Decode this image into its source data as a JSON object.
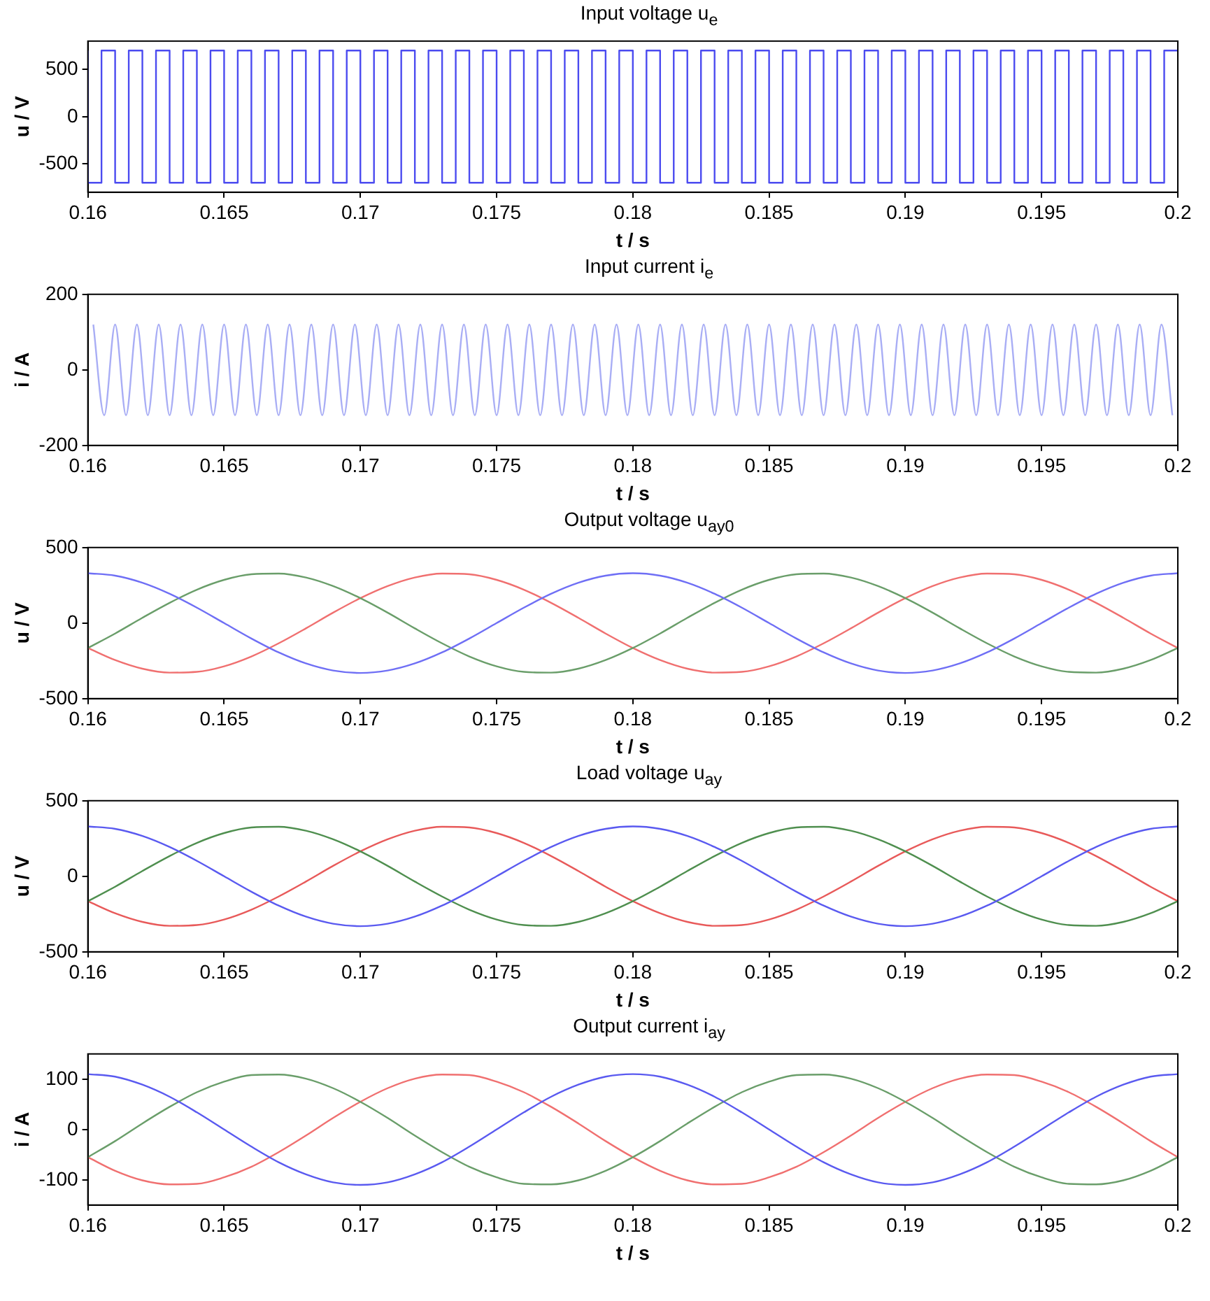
{
  "chart_data": [
    {
      "type": "step",
      "title": "Input voltage u$_{e}$",
      "xlabel": "t / s",
      "ylabel": "u / V",
      "marker": "none",
      "xlim": [
        0.16,
        0.2
      ],
      "xticks": [
        0.16,
        0.165,
        0.17,
        0.175,
        0.18,
        0.185,
        0.19,
        0.195,
        0.2
      ],
      "ylim": [
        -800,
        800
      ],
      "yticks": [
        -500,
        0,
        500
      ],
      "x": [
        0.16,
        0.1605,
        0.161,
        0.1615,
        0.162,
        0.1625,
        0.163,
        0.1635,
        0.164,
        0.1645,
        0.165,
        0.1655,
        0.166,
        0.1665,
        0.167,
        0.1675,
        0.168,
        0.1685,
        0.169,
        0.1695,
        0.17,
        0.1705,
        0.171,
        0.1715,
        0.172,
        0.1725,
        0.173,
        0.1735,
        0.174,
        0.1745,
        0.175,
        0.1755,
        0.176,
        0.1765,
        0.177,
        0.1775,
        0.178,
        0.1785,
        0.179,
        0.1795,
        0.18,
        0.1805,
        0.181,
        0.1815,
        0.182,
        0.1825,
        0.183,
        0.1835,
        0.184,
        0.1845,
        0.185,
        0.1855,
        0.186,
        0.1865,
        0.187,
        0.1875,
        0.188,
        0.1885,
        0.189,
        0.1895,
        0.19,
        0.1905,
        0.191,
        0.1915,
        0.192,
        0.1925,
        0.193,
        0.1935,
        0.194,
        0.1945,
        0.195,
        0.1955,
        0.196,
        0.1965,
        0.197,
        0.1975,
        0.198,
        0.1985,
        0.199,
        0.1995,
        0.2
      ],
      "series": [
        {
          "color": "#4b4bf0",
          "values": [
            700,
            -700,
            700,
            -700,
            700,
            -700,
            700,
            -700,
            700,
            -700,
            700,
            -700,
            700,
            -700,
            700,
            -700,
            700,
            -700,
            700,
            -700,
            700,
            -700,
            700,
            -700,
            700,
            -700,
            700,
            -700,
            700,
            -700,
            700,
            -700,
            700,
            -700,
            700,
            -700,
            700,
            -700,
            700,
            -700,
            700,
            -700,
            700,
            -700,
            700,
            -700,
            700,
            -700,
            700,
            -700,
            700,
            -700,
            700,
            -700,
            700,
            -700,
            700,
            -700,
            700,
            -700,
            700,
            -700,
            700,
            -700,
            700,
            -700,
            700,
            -700,
            700,
            -700,
            700,
            -700,
            700,
            -700,
            700,
            -700,
            700,
            -700,
            700,
            -700,
            700
          ]
        }
      ]
    },
    {
      "type": "line",
      "title": "Input current i$_{e}$",
      "xlabel": "t / s",
      "ylabel": "i / A",
      "marker": "none",
      "xlim": [
        0.16,
        0.2
      ],
      "xticks": [
        0.16,
        0.165,
        0.17,
        0.175,
        0.18,
        0.185,
        0.19,
        0.195,
        0.2
      ],
      "ylim": [
        -200,
        200
      ],
      "yticks": [
        -200,
        0,
        200
      ],
      "x": [
        0.1602,
        0.1606,
        0.161,
        0.1614,
        0.1618,
        0.1622,
        0.1626,
        0.163,
        0.1634,
        0.1638,
        0.1642,
        0.1646,
        0.165,
        0.1654,
        0.1658,
        0.1662,
        0.1666,
        0.167,
        0.1674,
        0.1678,
        0.1682,
        0.1686,
        0.169,
        0.1694,
        0.1698,
        0.1702,
        0.1706,
        0.171,
        0.1714,
        0.1718,
        0.1722,
        0.1726,
        0.173,
        0.1734,
        0.1738,
        0.1742,
        0.1746,
        0.175,
        0.1754,
        0.1758,
        0.1762,
        0.1766,
        0.177,
        0.1774,
        0.1778,
        0.1782,
        0.1786,
        0.179,
        0.1794,
        0.1798,
        0.1802,
        0.1806,
        0.181,
        0.1814,
        0.1818,
        0.1822,
        0.1826,
        0.183,
        0.1834,
        0.1838,
        0.1842,
        0.1846,
        0.185,
        0.1854,
        0.1858,
        0.1862,
        0.1866,
        0.187,
        0.1874,
        0.1878,
        0.1882,
        0.1886,
        0.189,
        0.1894,
        0.1898,
        0.1902,
        0.1906,
        0.191,
        0.1914,
        0.1918,
        0.1922,
        0.1926,
        0.193,
        0.1934,
        0.1938,
        0.1942,
        0.1946,
        0.195,
        0.1954,
        0.1958,
        0.1962,
        0.1966,
        0.197,
        0.1974,
        0.1978,
        0.1982,
        0.1986,
        0.199,
        0.1994,
        0.1998
      ],
      "series": [
        {
          "color": "#a9aef5",
          "values": [
            120,
            -120,
            120,
            -120,
            120,
            -120,
            120,
            -120,
            120,
            -120,
            120,
            -120,
            120,
            -120,
            120,
            -120,
            120,
            -120,
            120,
            -120,
            120,
            -120,
            120,
            -120,
            120,
            -120,
            120,
            -120,
            120,
            -120,
            120,
            -120,
            120,
            -120,
            120,
            -120,
            120,
            -120,
            120,
            -120,
            120,
            -120,
            120,
            -120,
            120,
            -120,
            120,
            -120,
            120,
            -120,
            120,
            -120,
            120,
            -120,
            120,
            -120,
            120,
            -120,
            120,
            -120,
            120,
            -120,
            120,
            -120,
            120,
            -120,
            120,
            -120,
            120,
            -120,
            120,
            -120,
            120,
            -120,
            120,
            -120,
            120,
            -120,
            120,
            -120,
            120,
            -120,
            120,
            -120,
            120,
            -120,
            120,
            -120,
            120,
            -120,
            120,
            -120,
            120,
            -120,
            120,
            -120,
            120,
            -120,
            120,
            -120
          ]
        }
      ]
    },
    {
      "type": "line",
      "title": "Output voltage  u$_{ay0}$",
      "xlabel": "t / s",
      "ylabel": "u / V",
      "marker": "none",
      "xlim": [
        0.16,
        0.2
      ],
      "xticks": [
        0.16,
        0.165,
        0.17,
        0.175,
        0.18,
        0.185,
        0.19,
        0.195,
        0.2
      ],
      "ylim": [
        -500,
        500
      ],
      "yticks": [
        -500,
        0,
        500
      ],
      "x": [
        0.16,
        0.161,
        0.162,
        0.163,
        0.164,
        0.165,
        0.166,
        0.167,
        0.168,
        0.169,
        0.17,
        0.171,
        0.172,
        0.173,
        0.174,
        0.175,
        0.176,
        0.177,
        0.178,
        0.179,
        0.18,
        0.181,
        0.182,
        0.183,
        0.184,
        0.185,
        0.186,
        0.187,
        0.188,
        0.189,
        0.19,
        0.191,
        0.192,
        0.193,
        0.194,
        0.195,
        0.196,
        0.197,
        0.198,
        0.199,
        0.2
      ],
      "series": [
        {
          "color": "#6f6ff5",
          "values": [
            330,
            314,
            267,
            194,
            102,
            0,
            -102,
            -194,
            -267,
            -314,
            -330,
            -314,
            -267,
            -194,
            -102,
            0,
            102,
            194,
            267,
            314,
            330,
            314,
            267,
            194,
            102,
            0,
            -102,
            -194,
            -267,
            -314,
            -330,
            -314,
            -267,
            -194,
            -102,
            0,
            102,
            194,
            267,
            314,
            330
          ]
        },
        {
          "color": "#6a9e6a",
          "values": [
            -165,
            -69,
            35,
            134,
            221,
            286,
            323,
            328,
            302,
            245,
            165,
            69,
            -35,
            -134,
            -221,
            -286,
            -323,
            -328,
            -302,
            -245,
            -165,
            -69,
            35,
            134,
            221,
            286,
            323,
            328,
            302,
            245,
            165,
            69,
            -35,
            -134,
            -221,
            -286,
            -323,
            -328,
            -302,
            -245,
            -165
          ]
        },
        {
          "color": "#f07070",
          "values": [
            -165,
            -245,
            -302,
            -328,
            -323,
            -286,
            -221,
            -134,
            -35,
            69,
            165,
            245,
            302,
            328,
            323,
            286,
            221,
            134,
            35,
            -69,
            -165,
            -245,
            -302,
            -328,
            -323,
            -286,
            -221,
            -134,
            -35,
            69,
            165,
            245,
            302,
            328,
            323,
            286,
            221,
            134,
            35,
            -69,
            -165
          ]
        }
      ]
    },
    {
      "type": "line",
      "title": "Load voltage u$_{ay}$",
      "xlabel": "t / s",
      "ylabel": "u / V",
      "marker": "none",
      "xlim": [
        0.16,
        0.2
      ],
      "xticks": [
        0.16,
        0.165,
        0.17,
        0.175,
        0.18,
        0.185,
        0.19,
        0.195,
        0.2
      ],
      "ylim": [
        -500,
        500
      ],
      "yticks": [
        -500,
        0,
        500
      ],
      "x": [
        0.16,
        0.161,
        0.162,
        0.163,
        0.164,
        0.165,
        0.166,
        0.167,
        0.168,
        0.169,
        0.17,
        0.171,
        0.172,
        0.173,
        0.174,
        0.175,
        0.176,
        0.177,
        0.178,
        0.179,
        0.18,
        0.181,
        0.182,
        0.183,
        0.184,
        0.185,
        0.186,
        0.187,
        0.188,
        0.189,
        0.19,
        0.191,
        0.192,
        0.193,
        0.194,
        0.195,
        0.196,
        0.197,
        0.198,
        0.199,
        0.2
      ],
      "series": [
        {
          "color": "#5a5af0",
          "values": [
            330,
            314,
            267,
            194,
            102,
            0,
            -102,
            -194,
            -267,
            -314,
            -330,
            -314,
            -267,
            -194,
            -102,
            0,
            102,
            194,
            267,
            314,
            330,
            314,
            267,
            194,
            102,
            0,
            -102,
            -194,
            -267,
            -314,
            -330,
            -314,
            -267,
            -194,
            -102,
            0,
            102,
            194,
            267,
            314,
            330
          ]
        },
        {
          "color": "#4f8f4f",
          "values": [
            -165,
            -69,
            35,
            134,
            221,
            286,
            323,
            328,
            302,
            245,
            165,
            69,
            -35,
            -134,
            -221,
            -286,
            -323,
            -328,
            -302,
            -245,
            -165,
            -69,
            35,
            134,
            221,
            286,
            323,
            328,
            302,
            245,
            165,
            69,
            -35,
            -134,
            -221,
            -286,
            -323,
            -328,
            -302,
            -245,
            -165
          ]
        },
        {
          "color": "#e85a5a",
          "values": [
            -165,
            -245,
            -302,
            -328,
            -323,
            -286,
            -221,
            -134,
            -35,
            69,
            165,
            245,
            302,
            328,
            323,
            286,
            221,
            134,
            35,
            -69,
            -165,
            -245,
            -302,
            -328,
            -323,
            -286,
            -221,
            -134,
            -35,
            69,
            165,
            245,
            302,
            328,
            323,
            286,
            221,
            134,
            35,
            -69,
            -165
          ]
        }
      ]
    },
    {
      "type": "line",
      "title": "Output current i$_{ay}$",
      "xlabel": "t / s",
      "ylabel": "i / A",
      "marker": "none",
      "xlim": [
        0.16,
        0.2
      ],
      "xticks": [
        0.16,
        0.165,
        0.17,
        0.175,
        0.18,
        0.185,
        0.19,
        0.195,
        0.2
      ],
      "ylim": [
        -150,
        150
      ],
      "yticks": [
        -100,
        0,
        100
      ],
      "x": [
        0.16,
        0.161,
        0.162,
        0.163,
        0.164,
        0.165,
        0.166,
        0.167,
        0.168,
        0.169,
        0.17,
        0.171,
        0.172,
        0.173,
        0.174,
        0.175,
        0.176,
        0.177,
        0.178,
        0.179,
        0.18,
        0.181,
        0.182,
        0.183,
        0.184,
        0.185,
        0.186,
        0.187,
        0.188,
        0.189,
        0.19,
        0.191,
        0.192,
        0.193,
        0.194,
        0.195,
        0.196,
        0.197,
        0.198,
        0.199,
        0.2
      ],
      "series": [
        {
          "color": "#5a5af0",
          "values": [
            110,
            105,
            89,
            65,
            34,
            0,
            -34,
            -65,
            -89,
            -105,
            -110,
            -105,
            -89,
            -65,
            -34,
            0,
            34,
            65,
            89,
            105,
            110,
            105,
            89,
            65,
            34,
            0,
            -34,
            -65,
            -89,
            -105,
            -110,
            -105,
            -89,
            -65,
            -34,
            0,
            34,
            65,
            89,
            105,
            110
          ]
        },
        {
          "color": "#6a9e6a",
          "values": [
            -55,
            -23,
            12,
            45,
            74,
            95,
            108,
            109,
            101,
            82,
            55,
            23,
            -12,
            -45,
            -74,
            -95,
            -108,
            -109,
            -101,
            -82,
            -55,
            -23,
            12,
            45,
            74,
            95,
            108,
            109,
            101,
            82,
            55,
            23,
            -12,
            -45,
            -74,
            -95,
            -108,
            -109,
            -101,
            -82,
            -55
          ]
        },
        {
          "color": "#f07070",
          "values": [
            -55,
            -82,
            -101,
            -109,
            -108,
            -95,
            -74,
            -45,
            -12,
            23,
            55,
            82,
            101,
            109,
            108,
            95,
            74,
            45,
            12,
            -23,
            -55,
            -82,
            -101,
            -109,
            -108,
            -95,
            -74,
            -45,
            -12,
            23,
            55,
            82,
            101,
            109,
            108,
            95,
            74,
            45,
            12,
            -23,
            -55
          ]
        }
      ]
    }
  ]
}
